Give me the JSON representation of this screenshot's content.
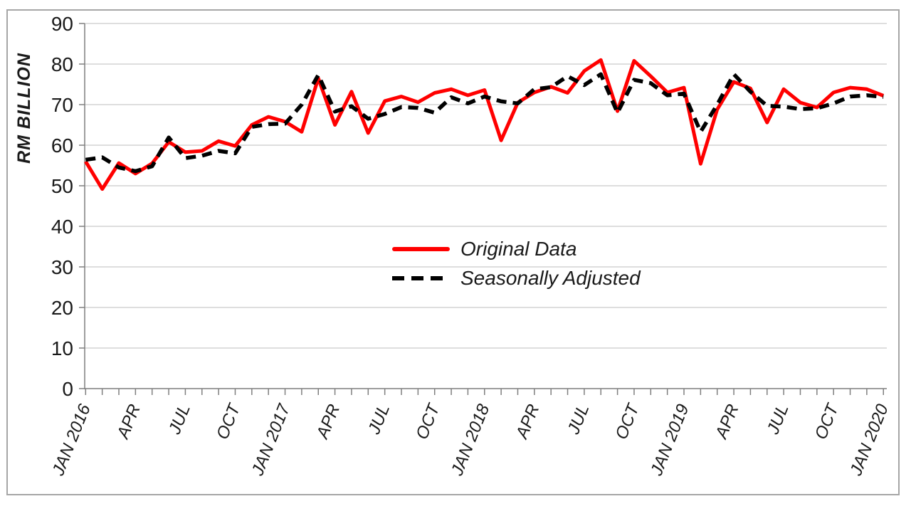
{
  "chart": {
    "y_axis_title": "RM BILLION",
    "y_ticks": [
      0,
      10,
      20,
      30,
      40,
      50,
      60,
      70,
      80,
      90
    ],
    "x_tick_labels": [
      "JAN 2016",
      "APR",
      "JUL",
      "OCT",
      "JAN 2017",
      "APR",
      "JUL",
      "OCT",
      "JAN 2018",
      "APR",
      "JUL",
      "OCT",
      "JAN 2019",
      "APR",
      "JUL",
      "OCT",
      "JAN 2020"
    ],
    "colors": {
      "grid": "#c9c9c9",
      "axis": "#7f7f7f",
      "frame": "#a6a6a6",
      "text": "#1a1a1a",
      "original": "#ff0000",
      "seasonal": "#000000"
    }
  },
  "chart_data": {
    "type": "line",
    "title": "",
    "xlabel": "",
    "ylabel": "RM BILLION",
    "ylim": [
      0,
      90
    ],
    "grid": "horizontal",
    "legend_position": "center",
    "x": [
      "JAN 2016",
      "FEB 2016",
      "MAR 2016",
      "APR 2016",
      "MAY 2016",
      "JUN 2016",
      "JUL 2016",
      "AUG 2016",
      "SEP 2016",
      "OCT 2016",
      "NOV 2016",
      "DEC 2016",
      "JAN 2017",
      "FEB 2017",
      "MAR 2017",
      "APR 2017",
      "MAY 2017",
      "JUN 2017",
      "JUL 2017",
      "AUG 2017",
      "SEP 2017",
      "OCT 2017",
      "NOV 2017",
      "DEC 2017",
      "JAN 2018",
      "FEB 2018",
      "MAR 2018",
      "APR 2018",
      "MAY 2018",
      "JUN 2018",
      "JUL 2018",
      "AUG 2018",
      "SEP 2018",
      "OCT 2018",
      "NOV 2018",
      "DEC 2018",
      "JAN 2019",
      "FEB 2019",
      "MAR 2019",
      "APR 2019",
      "MAY 2019",
      "JUN 2019",
      "JUL 2019",
      "AUG 2019",
      "SEP 2019",
      "OCT 2019",
      "NOV 2019",
      "DEC 2019",
      "JAN 2020"
    ],
    "series": [
      {
        "name": "Original Data",
        "style": "solid",
        "color": "#ff0000",
        "values": [
          56.0,
          49.2,
          55.6,
          53.0,
          55.5,
          60.8,
          58.3,
          58.6,
          61.0,
          59.8,
          65.0,
          67.0,
          65.8,
          63.3,
          76.5,
          65.0,
          73.2,
          63.0,
          70.9,
          72.0,
          70.6,
          72.9,
          73.8,
          72.3,
          73.6,
          61.2,
          70.5,
          73.0,
          74.4,
          72.9,
          78.3,
          81.0,
          68.4,
          80.8,
          77.0,
          73.0,
          74.2,
          55.4,
          68.8,
          75.6,
          74.0,
          65.6,
          73.8,
          70.5,
          69.3,
          73.0,
          74.2,
          73.8,
          72.2
        ]
      },
      {
        "name": "Seasonally Adjusted",
        "style": "dashed",
        "color": "#000000",
        "values": [
          56.4,
          57.0,
          54.5,
          53.6,
          54.8,
          61.9,
          56.8,
          57.4,
          58.6,
          58.0,
          64.5,
          65.2,
          65.3,
          70.0,
          77.3,
          68.3,
          69.6,
          66.5,
          67.7,
          69.4,
          69.2,
          68.0,
          71.8,
          70.3,
          72.0,
          70.8,
          70.3,
          73.8,
          74.3,
          77.0,
          74.8,
          77.5,
          68.0,
          76.1,
          75.3,
          72.3,
          72.7,
          63.3,
          70.0,
          77.5,
          73.2,
          69.7,
          69.5,
          68.9,
          69.1,
          70.3,
          72.0,
          72.3,
          71.9
        ]
      }
    ]
  },
  "legend": {
    "items": [
      {
        "label": "Original Data",
        "swatch": "red-solid-line"
      },
      {
        "label": "Seasonally Adjusted",
        "swatch": "black-dashed-line"
      }
    ]
  }
}
